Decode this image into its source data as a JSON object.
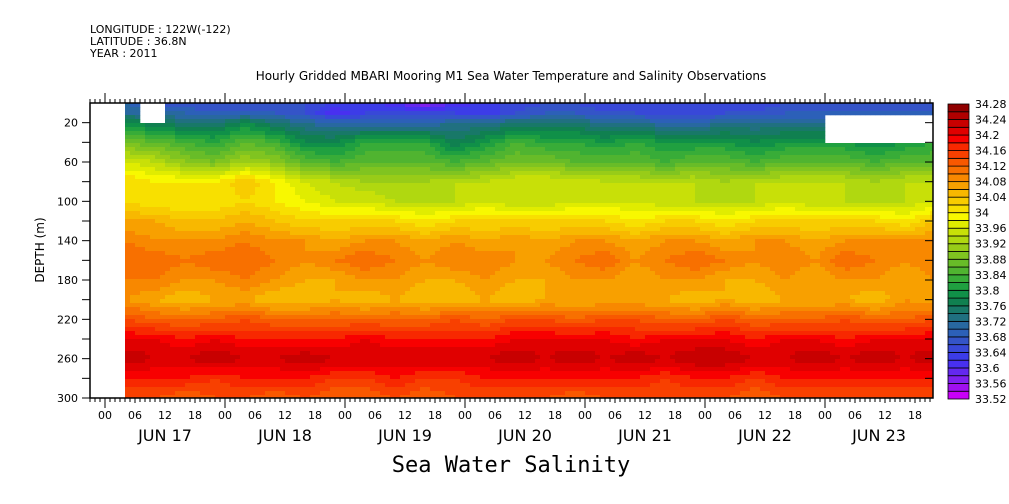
{
  "header": {
    "longitude": "LONGITUDE : 122W(-122)",
    "latitude": "LATITUDE : 36.8N",
    "year": "YEAR : 2011"
  },
  "chart_data": {
    "type": "heatmap",
    "title": "Hourly Gridded MBARI Mooring M1 Sea Water Temperature and Salinity Observations",
    "xlabel": "Sea Water Salinity",
    "ylabel": "DEPTH (m)",
    "x_unit": "hours since JUN 17 00:00 2011",
    "xlim": [
      -3,
      165.6
    ],
    "ylim": [
      0,
      300
    ],
    "y_ticks": [
      20,
      60,
      100,
      140,
      180,
      220,
      260,
      300
    ],
    "x_hour_ticks": [
      0,
      6,
      12,
      18,
      24,
      30,
      36,
      42,
      48,
      54,
      60,
      66,
      72,
      78,
      84,
      90,
      96,
      102,
      108,
      114,
      120,
      126,
      132,
      138,
      144,
      150,
      156,
      162
    ],
    "x_hour_labels": [
      "00",
      "06",
      "12",
      "18",
      "00",
      "06",
      "12",
      "18",
      "00",
      "06",
      "12",
      "18",
      "00",
      "06",
      "12",
      "18",
      "00",
      "06",
      "12",
      "18",
      "00",
      "06",
      "12",
      "18",
      "00",
      "06",
      "12",
      "18"
    ],
    "date_labels": [
      "JUN 17",
      "JUN 18",
      "JUN 19",
      "JUN 20",
      "JUN 21",
      "JUN 22",
      "JUN 23"
    ],
    "colorbar": {
      "min": 33.52,
      "max": 34.28,
      "step": 0.02,
      "labels": [
        "34.28",
        "34.24",
        "34.2",
        "34.16",
        "34.12",
        "34.08",
        "34.04",
        "34",
        "33.96",
        "33.92",
        "33.88",
        "33.84",
        "33.8",
        "33.76",
        "33.72",
        "33.68",
        "33.64",
        "33.6",
        "33.56",
        "33.52"
      ],
      "colors": [
        "#c800f8",
        "#a010f0",
        "#8020f0",
        "#6428f0",
        "#4830f0",
        "#3c3ce8",
        "#3848d8",
        "#3454c8",
        "#2c60b8",
        "#2868a0",
        "#207080",
        "#187868",
        "#108050",
        "#109048",
        "#20a040",
        "#38ac38",
        "#50b430",
        "#68bc28",
        "#80c420",
        "#98cc18",
        "#b0d810",
        "#c8e008",
        "#e0ec00",
        "#f8f800",
        "#f8e000",
        "#f8cc00",
        "#f8b800",
        "#f8a000",
        "#f88800",
        "#f87000",
        "#f85800",
        "#f84000",
        "#f82800",
        "#f80000",
        "#e00000",
        "#c80000",
        "#b00000",
        "#900000"
      ]
    },
    "missing_regions": [
      [
        -3,
        4.2,
        0,
        300
      ],
      [
        7,
        12,
        0,
        20
      ],
      [
        144.5,
        165.6,
        11,
        40
      ]
    ],
    "times": [
      4,
      10,
      16,
      22,
      28,
      34,
      40,
      46,
      52,
      58,
      64,
      70,
      76,
      82,
      88,
      94,
      100,
      106,
      112,
      118,
      124,
      130,
      136,
      142,
      148,
      154,
      160,
      166
    ],
    "depths": [
      0,
      10,
      20,
      40,
      60,
      80,
      100,
      120,
      140,
      160,
      180,
      200,
      220,
      240,
      260,
      280,
      300
    ],
    "values": [
      [
        33.7,
        33.68,
        33.66,
        33.66,
        33.66,
        33.66,
        33.66,
        33.64,
        33.64,
        33.6,
        33.56,
        33.6,
        33.64,
        33.64,
        33.66,
        33.66,
        33.64,
        33.64,
        33.66,
        33.64,
        33.64,
        33.64,
        33.66,
        33.66,
        33.66,
        33.66,
        33.66,
        33.66
      ],
      [
        33.72,
        33.7,
        33.7,
        33.68,
        33.68,
        33.68,
        33.66,
        33.6,
        33.64,
        33.64,
        33.64,
        33.64,
        33.62,
        33.66,
        33.68,
        33.68,
        33.66,
        33.66,
        33.64,
        33.64,
        33.66,
        33.66,
        33.68,
        33.68,
        33.68,
        33.68,
        33.68,
        33.68
      ],
      [
        33.78,
        33.76,
        33.74,
        33.74,
        33.78,
        33.74,
        33.72,
        33.7,
        33.7,
        33.7,
        33.7,
        33.72,
        33.72,
        33.74,
        33.74,
        33.74,
        33.72,
        33.72,
        33.7,
        33.7,
        33.72,
        33.72,
        33.72,
        33.72,
        33.72,
        33.76,
        33.78,
        33.78
      ],
      [
        33.88,
        33.86,
        33.84,
        33.82,
        33.86,
        33.84,
        33.78,
        33.78,
        33.82,
        33.82,
        33.82,
        33.76,
        33.8,
        33.84,
        33.82,
        33.82,
        33.8,
        33.82,
        33.8,
        33.8,
        33.8,
        33.78,
        33.8,
        33.8,
        33.8,
        33.78,
        33.8,
        33.82
      ],
      [
        33.96,
        33.94,
        33.9,
        33.88,
        33.92,
        33.9,
        33.86,
        33.84,
        33.86,
        33.86,
        33.86,
        33.84,
        33.86,
        33.88,
        33.88,
        33.86,
        33.86,
        33.86,
        33.84,
        33.86,
        33.86,
        33.84,
        33.86,
        33.86,
        33.86,
        33.84,
        33.86,
        33.86
      ],
      [
        34.02,
        34.0,
        34.0,
        34.0,
        34.04,
        34.0,
        33.96,
        33.94,
        33.92,
        33.92,
        33.92,
        33.94,
        33.94,
        33.96,
        33.96,
        33.96,
        33.94,
        33.94,
        33.94,
        33.94,
        33.92,
        33.94,
        33.94,
        33.94,
        33.94,
        33.92,
        33.94,
        33.94
      ],
      [
        34.02,
        34.0,
        34.0,
        34.0,
        34.02,
        34.0,
        33.98,
        33.96,
        33.96,
        33.94,
        33.94,
        33.94,
        33.96,
        33.94,
        33.94,
        33.96,
        33.96,
        33.96,
        33.94,
        33.94,
        33.94,
        33.94,
        33.96,
        33.94,
        33.94,
        33.94,
        33.94,
        33.96
      ],
      [
        34.06,
        34.06,
        34.04,
        34.04,
        34.06,
        34.04,
        34.02,
        34.02,
        34.02,
        34.02,
        34.0,
        34.02,
        34.02,
        34.02,
        34.02,
        34.02,
        34.02,
        34.0,
        34.02,
        34.02,
        34.0,
        34.02,
        34.02,
        34.02,
        34.02,
        34.02,
        34.0,
        34.04
      ],
      [
        34.1,
        34.08,
        34.08,
        34.08,
        34.1,
        34.08,
        34.08,
        34.06,
        34.08,
        34.08,
        34.06,
        34.08,
        34.06,
        34.08,
        34.06,
        34.08,
        34.08,
        34.06,
        34.08,
        34.08,
        34.06,
        34.08,
        34.08,
        34.06,
        34.08,
        34.08,
        34.08,
        34.08
      ],
      [
        34.12,
        34.12,
        34.1,
        34.12,
        34.12,
        34.1,
        34.08,
        34.1,
        34.12,
        34.1,
        34.08,
        34.1,
        34.1,
        34.08,
        34.08,
        34.1,
        34.12,
        34.08,
        34.1,
        34.12,
        34.1,
        34.08,
        34.1,
        34.08,
        34.12,
        34.1,
        34.08,
        34.1
      ],
      [
        34.1,
        34.1,
        34.08,
        34.08,
        34.1,
        34.08,
        34.06,
        34.06,
        34.08,
        34.08,
        34.06,
        34.06,
        34.08,
        34.06,
        34.06,
        34.08,
        34.08,
        34.06,
        34.08,
        34.08,
        34.06,
        34.06,
        34.08,
        34.06,
        34.08,
        34.08,
        34.06,
        34.08
      ],
      [
        34.08,
        34.06,
        34.04,
        34.06,
        34.06,
        34.04,
        34.04,
        34.06,
        34.04,
        34.06,
        34.04,
        34.04,
        34.06,
        34.04,
        34.06,
        34.06,
        34.06,
        34.06,
        34.06,
        34.04,
        34.06,
        34.04,
        34.06,
        34.06,
        34.06,
        34.04,
        34.08,
        34.06
      ],
      [
        34.14,
        34.12,
        34.12,
        34.12,
        34.14,
        34.12,
        34.12,
        34.12,
        34.12,
        34.12,
        34.12,
        34.14,
        34.12,
        34.14,
        34.14,
        34.12,
        34.14,
        34.14,
        34.12,
        34.12,
        34.14,
        34.12,
        34.12,
        34.12,
        34.14,
        34.12,
        34.12,
        34.14
      ],
      [
        34.2,
        34.2,
        34.18,
        34.2,
        34.18,
        34.18,
        34.18,
        34.18,
        34.2,
        34.18,
        34.18,
        34.18,
        34.18,
        34.2,
        34.2,
        34.2,
        34.2,
        34.18,
        34.2,
        34.2,
        34.2,
        34.18,
        34.2,
        34.2,
        34.18,
        34.2,
        34.2,
        34.2
      ],
      [
        34.24,
        34.22,
        34.22,
        34.24,
        34.22,
        34.22,
        34.24,
        34.22,
        34.22,
        34.22,
        34.22,
        34.22,
        34.22,
        34.24,
        34.22,
        34.24,
        34.22,
        34.24,
        34.22,
        34.24,
        34.24,
        34.22,
        34.22,
        34.24,
        34.22,
        34.24,
        34.22,
        34.24
      ],
      [
        34.18,
        34.18,
        34.18,
        34.16,
        34.18,
        34.18,
        34.18,
        34.16,
        34.16,
        34.18,
        34.16,
        34.16,
        34.18,
        34.18,
        34.18,
        34.18,
        34.18,
        34.18,
        34.16,
        34.18,
        34.18,
        34.16,
        34.18,
        34.18,
        34.18,
        34.18,
        34.18,
        34.18
      ],
      [
        34.14,
        34.14,
        34.12,
        34.14,
        34.14,
        34.12,
        34.14,
        34.12,
        34.12,
        34.14,
        34.12,
        34.14,
        34.14,
        34.14,
        34.14,
        34.12,
        34.14,
        34.14,
        34.14,
        34.14,
        34.14,
        34.12,
        34.14,
        34.14,
        34.14,
        34.14,
        34.14,
        34.14
      ]
    ]
  }
}
